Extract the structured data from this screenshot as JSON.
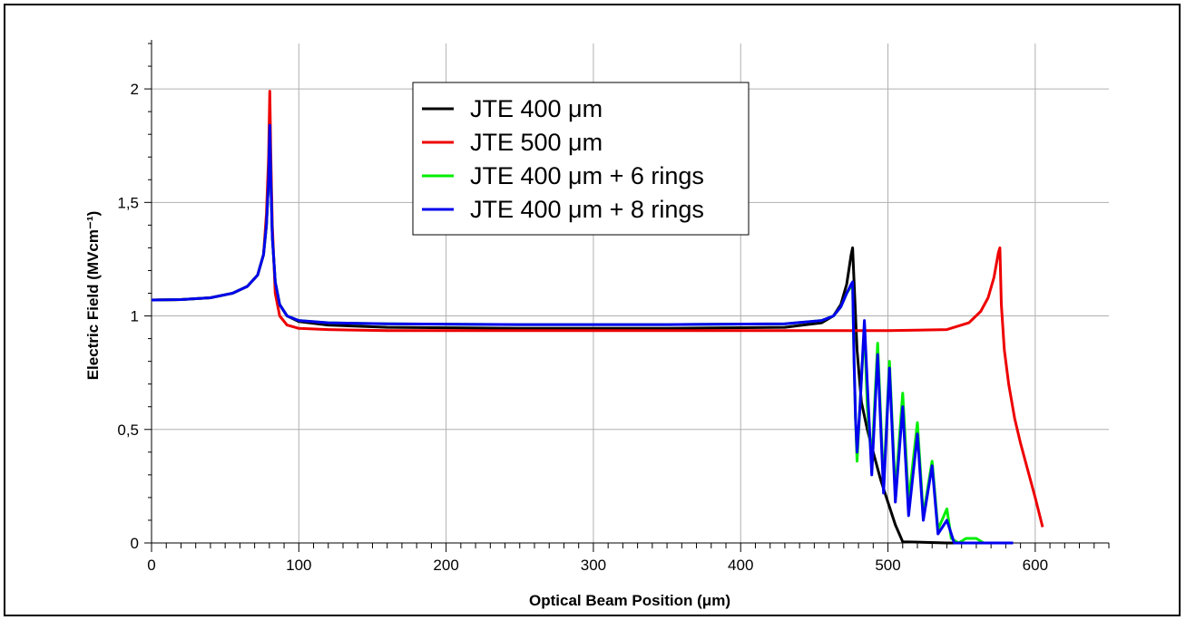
{
  "chart_data": {
    "type": "line",
    "xlabel": "Optical Beam Position (μm)",
    "ylabel": "Electric Field (MVcm⁻¹)",
    "xlim": [
      0,
      650
    ],
    "ylim": [
      0,
      2.2
    ],
    "x_ticks": [
      0,
      100,
      200,
      300,
      400,
      500,
      600
    ],
    "x_tick_labels": [
      "0",
      "100",
      "200",
      "300",
      "400",
      "500",
      "600"
    ],
    "y_ticks": [
      0,
      0.5,
      1,
      1.5,
      2
    ],
    "y_tick_labels": [
      "0",
      "0,5",
      "1",
      "1,5",
      "2"
    ],
    "grid": true,
    "legend_position": "top-center",
    "series": [
      {
        "name": "JTE 400 μm",
        "color": "#000000",
        "points": [
          [
            0,
            1.07
          ],
          [
            20,
            1.072
          ],
          [
            40,
            1.08
          ],
          [
            55,
            1.1
          ],
          [
            65,
            1.13
          ],
          [
            72,
            1.18
          ],
          [
            76,
            1.27
          ],
          [
            78,
            1.4
          ],
          [
            79.5,
            1.6
          ],
          [
            80.3,
            1.8
          ],
          [
            81,
            1.6
          ],
          [
            82,
            1.35
          ],
          [
            84,
            1.15
          ],
          [
            87,
            1.05
          ],
          [
            92,
            1.0
          ],
          [
            100,
            0.975
          ],
          [
            120,
            0.96
          ],
          [
            160,
            0.95
          ],
          [
            250,
            0.945
          ],
          [
            350,
            0.945
          ],
          [
            430,
            0.95
          ],
          [
            455,
            0.97
          ],
          [
            463,
            1.0
          ],
          [
            468,
            1.05
          ],
          [
            472,
            1.14
          ],
          [
            475,
            1.27
          ],
          [
            476,
            1.3
          ],
          [
            477,
            1.15
          ],
          [
            479,
            0.85
          ],
          [
            482,
            0.62
          ],
          [
            486,
            0.5
          ],
          [
            490,
            0.4
          ],
          [
            495,
            0.28
          ],
          [
            500,
            0.18
          ],
          [
            505,
            0.08
          ],
          [
            510,
            0.005
          ],
          [
            540,
            0
          ],
          [
            560,
            0
          ]
        ]
      },
      {
        "name": "JTE 500 μm",
        "color": "#ee0000",
        "points": [
          [
            0,
            1.07
          ],
          [
            20,
            1.072
          ],
          [
            40,
            1.08
          ],
          [
            55,
            1.1
          ],
          [
            65,
            1.13
          ],
          [
            72,
            1.18
          ],
          [
            76,
            1.27
          ],
          [
            78,
            1.45
          ],
          [
            79.5,
            1.7
          ],
          [
            80.3,
            1.99
          ],
          [
            81,
            1.7
          ],
          [
            82,
            1.4
          ],
          [
            84,
            1.1
          ],
          [
            87,
            1.0
          ],
          [
            92,
            0.96
          ],
          [
            100,
            0.945
          ],
          [
            120,
            0.94
          ],
          [
            160,
            0.935
          ],
          [
            300,
            0.935
          ],
          [
            400,
            0.935
          ],
          [
            500,
            0.935
          ],
          [
            540,
            0.94
          ],
          [
            555,
            0.97
          ],
          [
            563,
            1.02
          ],
          [
            568,
            1.08
          ],
          [
            572,
            1.17
          ],
          [
            575,
            1.28
          ],
          [
            576,
            1.3
          ],
          [
            577,
            1.05
          ],
          [
            579,
            0.85
          ],
          [
            582,
            0.7
          ],
          [
            586,
            0.55
          ],
          [
            590,
            0.44
          ],
          [
            595,
            0.32
          ],
          [
            600,
            0.2
          ],
          [
            605,
            0.07
          ]
        ]
      },
      {
        "name": "JTE 400 μm + 6 rings",
        "color": "#00ee00",
        "points": [
          [
            0,
            1.07
          ],
          [
            20,
            1.072
          ],
          [
            40,
            1.08
          ],
          [
            55,
            1.1
          ],
          [
            65,
            1.13
          ],
          [
            72,
            1.18
          ],
          [
            76,
            1.27
          ],
          [
            78,
            1.4
          ],
          [
            79.5,
            1.6
          ],
          [
            80.3,
            1.82
          ],
          [
            81,
            1.6
          ],
          [
            82,
            1.35
          ],
          [
            84,
            1.15
          ],
          [
            87,
            1.05
          ],
          [
            92,
            1.0
          ],
          [
            100,
            0.98
          ],
          [
            120,
            0.97
          ],
          [
            160,
            0.965
          ],
          [
            250,
            0.962
          ],
          [
            350,
            0.962
          ],
          [
            430,
            0.965
          ],
          [
            455,
            0.98
          ],
          [
            463,
            1.0
          ],
          [
            468,
            1.04
          ],
          [
            472,
            1.1
          ],
          [
            475,
            1.13
          ],
          [
            476,
            1.14
          ],
          [
            477,
            0.8
          ],
          [
            478,
            0.55
          ],
          [
            479,
            0.36
          ],
          [
            481,
            0.6
          ],
          [
            484,
            0.96
          ],
          [
            486,
            0.6
          ],
          [
            489,
            0.35
          ],
          [
            493,
            0.88
          ],
          [
            497,
            0.25
          ],
          [
            501,
            0.8
          ],
          [
            505,
            0.22
          ],
          [
            510,
            0.66
          ],
          [
            514,
            0.18
          ],
          [
            520,
            0.53
          ],
          [
            524,
            0.12
          ],
          [
            530,
            0.36
          ],
          [
            534,
            0.06
          ],
          [
            540,
            0.15
          ],
          [
            543,
            0.02
          ],
          [
            548,
            0
          ],
          [
            553,
            0.02
          ],
          [
            560,
            0.02
          ],
          [
            565,
            0
          ],
          [
            585,
            0
          ]
        ]
      },
      {
        "name": "JTE 400 μm + 8 rings",
        "color": "#0000ee",
        "points": [
          [
            0,
            1.07
          ],
          [
            20,
            1.072
          ],
          [
            40,
            1.08
          ],
          [
            55,
            1.1
          ],
          [
            65,
            1.13
          ],
          [
            72,
            1.18
          ],
          [
            76,
            1.27
          ],
          [
            78,
            1.4
          ],
          [
            79.5,
            1.6
          ],
          [
            80.3,
            1.84
          ],
          [
            81,
            1.6
          ],
          [
            82,
            1.35
          ],
          [
            84,
            1.15
          ],
          [
            87,
            1.05
          ],
          [
            92,
            1.0
          ],
          [
            100,
            0.98
          ],
          [
            120,
            0.97
          ],
          [
            160,
            0.965
          ],
          [
            250,
            0.962
          ],
          [
            350,
            0.962
          ],
          [
            430,
            0.965
          ],
          [
            455,
            0.98
          ],
          [
            463,
            1.0
          ],
          [
            468,
            1.04
          ],
          [
            472,
            1.1
          ],
          [
            475,
            1.14
          ],
          [
            476,
            1.15
          ],
          [
            477,
            0.8
          ],
          [
            478,
            0.55
          ],
          [
            479,
            0.4
          ],
          [
            481,
            0.6
          ],
          [
            484,
            0.98
          ],
          [
            486,
            0.7
          ],
          [
            489,
            0.3
          ],
          [
            493,
            0.83
          ],
          [
            497,
            0.22
          ],
          [
            501,
            0.77
          ],
          [
            505,
            0.18
          ],
          [
            510,
            0.6
          ],
          [
            514,
            0.12
          ],
          [
            520,
            0.48
          ],
          [
            524,
            0.1
          ],
          [
            530,
            0.34
          ],
          [
            534,
            0.04
          ],
          [
            540,
            0.1
          ],
          [
            545,
            0
          ],
          [
            585,
            0
          ]
        ]
      }
    ]
  }
}
